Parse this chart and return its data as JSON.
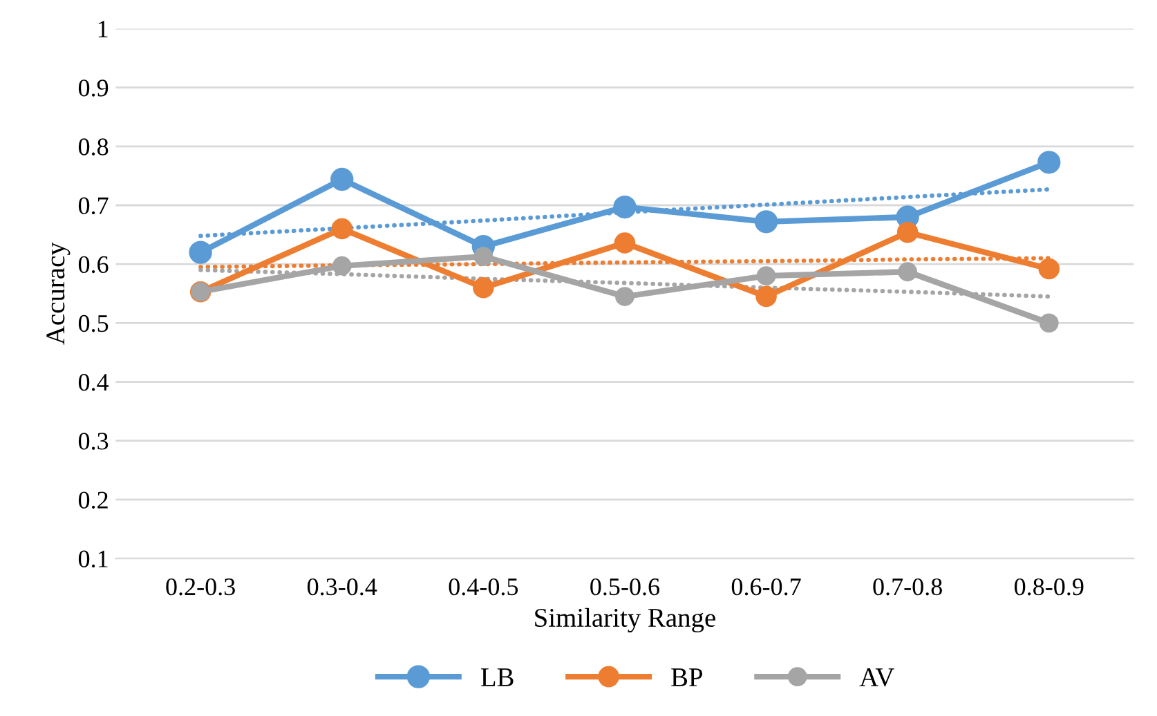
{
  "chart_data": {
    "type": "line",
    "xlabel": "Similarity Range",
    "ylabel": "Accuracy",
    "categories": [
      "0.2-0.3",
      "0.3-0.4",
      "0.4-0.5",
      "0.5-0.6",
      "0.6-0.7",
      "0.7-0.8",
      "0.8-0.9"
    ],
    "series": [
      {
        "name": "LB",
        "color": "#5b9bd5",
        "values": [
          0.62,
          0.744,
          0.63,
          0.697,
          0.672,
          0.68,
          0.773
        ]
      },
      {
        "name": "BP",
        "color": "#ed7d31",
        "values": [
          0.553,
          0.66,
          0.56,
          0.636,
          0.545,
          0.654,
          0.592
        ]
      },
      {
        "name": "AV",
        "color": "#a5a5a5",
        "values": [
          0.553,
          0.597,
          0.613,
          0.545,
          0.58,
          0.587,
          0.5
        ]
      },
      {
        "color": "#5b9bd5",
        "line_style": "dotted",
        "marker": "none",
        "values": [
          0.648,
          0.661,
          0.674,
          0.688,
          0.701,
          0.714,
          0.727
        ]
      },
      {
        "color": "#ed7d31",
        "line_style": "dotted",
        "marker": "none",
        "values": [
          0.595,
          0.598,
          0.6,
          0.603,
          0.605,
          0.608,
          0.61
        ]
      },
      {
        "color": "#a5a5a5",
        "line_style": "dotted",
        "marker": "none",
        "values": [
          0.59,
          0.583,
          0.575,
          0.568,
          0.56,
          0.553,
          0.545
        ]
      }
    ],
    "ylim": [
      0.1,
      1
    ],
    "yticks": [
      0.1,
      0.2,
      0.3,
      0.4,
      0.5,
      0.6,
      0.7,
      0.8,
      0.9,
      1
    ],
    "grid": "y",
    "legend": "bottom",
    "marker": "circle",
    "line_style": "solid"
  }
}
